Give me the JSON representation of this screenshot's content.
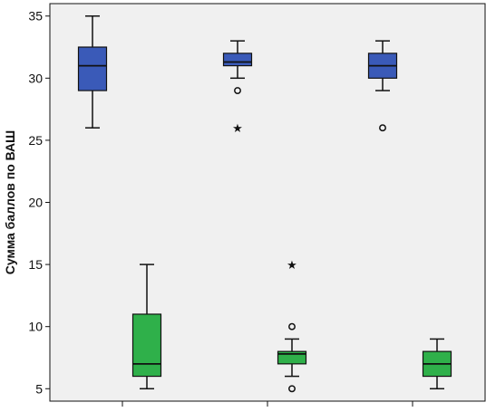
{
  "chart_data": {
    "type": "boxplot",
    "title": "",
    "xlabel": "",
    "ylabel": "Сумма баллов по ВАШ",
    "ylim": [
      4,
      36
    ],
    "yticks": [
      5,
      10,
      15,
      20,
      25,
      30,
      35
    ],
    "grid": false,
    "groups": 3,
    "colors": {
      "series_1": "#3a5ab8",
      "series_2": "#2fb04a",
      "background": "#f0f0f0",
      "outline": "#111111"
    },
    "boxes": [
      {
        "group": 1,
        "series": 1,
        "min": 26,
        "q1": 29,
        "median": 31,
        "q3": 32.5,
        "max": 35,
        "outliers": [],
        "extremes": []
      },
      {
        "group": 2,
        "series": 1,
        "min": 30,
        "q1": 31,
        "median": 31.3,
        "q3": 32,
        "max": 33,
        "outliers": [
          29
        ],
        "extremes": [
          26
        ]
      },
      {
        "group": 3,
        "series": 1,
        "min": 29,
        "q1": 30,
        "median": 31,
        "q3": 32,
        "max": 33,
        "outliers": [
          26
        ],
        "extremes": []
      },
      {
        "group": 1,
        "series": 2,
        "min": 5,
        "q1": 6,
        "median": 7,
        "q3": 11,
        "max": 15,
        "outliers": [],
        "extremes": []
      },
      {
        "group": 2,
        "series": 2,
        "min": 6,
        "q1": 7,
        "median": 7.8,
        "q3": 8,
        "max": 9,
        "outliers": [
          10,
          5
        ],
        "extremes": [
          15
        ]
      },
      {
        "group": 3,
        "series": 2,
        "min": 5,
        "q1": 6,
        "median": 7,
        "q3": 8,
        "max": 9,
        "outliers": [],
        "extremes": []
      }
    ]
  }
}
